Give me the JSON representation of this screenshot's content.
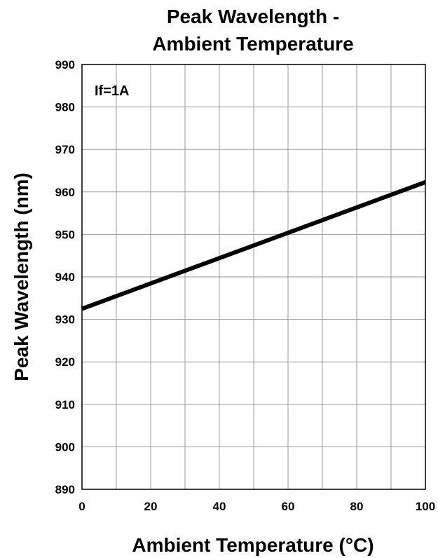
{
  "chart_data": {
    "type": "line",
    "title_lines": [
      "Peak Wavelength -",
      "Ambient Temperature"
    ],
    "xlabel": "Ambient Temperature (°C)",
    "ylabel": "Peak Wavelength (nm)",
    "xlim": [
      0,
      100
    ],
    "ylim": [
      890,
      990
    ],
    "x_ticks": [
      0,
      20,
      40,
      60,
      80,
      100
    ],
    "y_ticks": [
      890,
      900,
      910,
      920,
      930,
      940,
      950,
      960,
      970,
      980,
      990
    ],
    "grid": true,
    "annotation": "If=1A",
    "series": [
      {
        "x": [
          0,
          100
        ],
        "y": [
          932.5,
          962.3
        ],
        "color": "#000000"
      }
    ]
  }
}
